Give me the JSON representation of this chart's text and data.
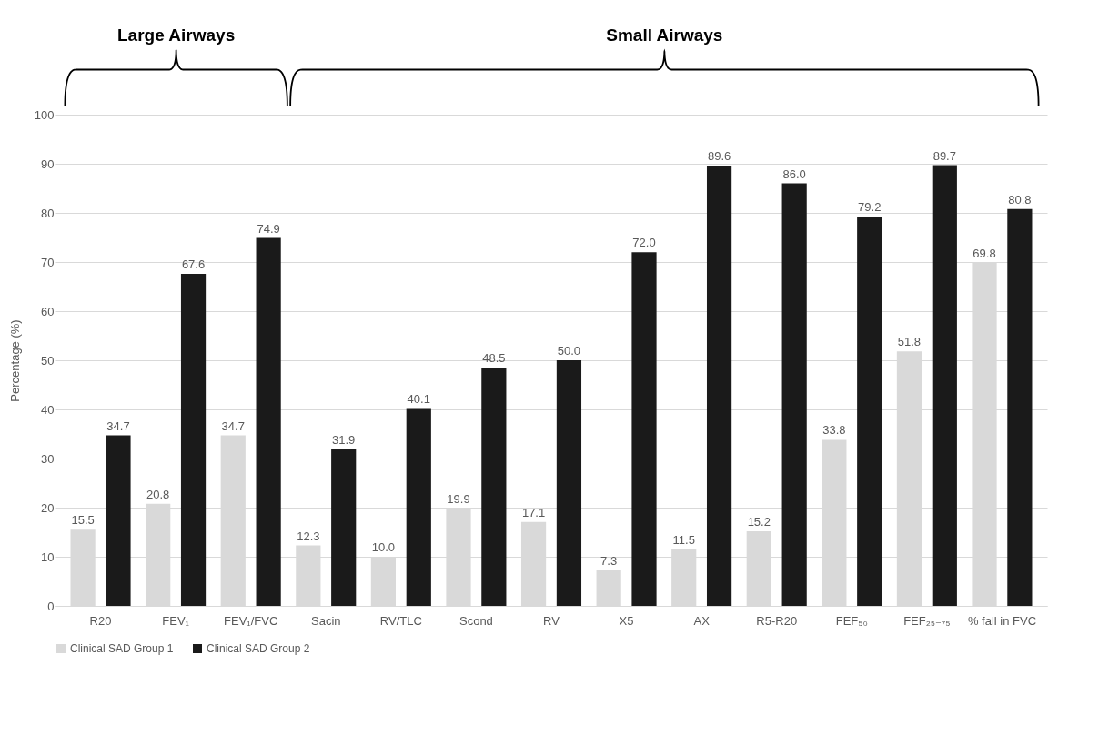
{
  "chart_data": {
    "type": "bar",
    "ylabel": "Percentage (%)",
    "categories": [
      "R20",
      "FEV₁",
      "FEV₁/FVC",
      "Sacin",
      "RV/TLC",
      "Scond",
      "RV",
      "X5",
      "AX",
      "R5-R20",
      "FEF₅₀",
      "FEF₂₅₋₇₅",
      "% fall in FVC"
    ],
    "series": [
      {
        "name": "Clinical SAD Group 1",
        "color": "#d9d9d9",
        "values": [
          15.5,
          20.8,
          34.7,
          12.3,
          10.0,
          19.9,
          17.1,
          7.3,
          11.5,
          15.2,
          33.8,
          51.8,
          69.8
        ],
        "value_labels": [
          "15.5",
          "20.8",
          "34.7",
          "12.3",
          "10.0",
          "19.9",
          "17.1",
          "7.3",
          "11.5",
          "15.2",
          "33.8",
          "51.8",
          "69.8"
        ]
      },
      {
        "name": "Clinical SAD Group 2",
        "color": "#1a1a1a",
        "values": [
          34.7,
          67.6,
          74.9,
          31.9,
          40.1,
          48.5,
          50.0,
          72.0,
          89.6,
          86.0,
          79.2,
          89.7,
          80.8
        ],
        "value_labels": [
          "34.7",
          "67.6",
          "74.9",
          "31.9",
          "40.1",
          "48.5",
          "50.0",
          "72.0",
          "89.6",
          "86.0",
          "79.2",
          "89.7",
          "80.8"
        ]
      }
    ],
    "ylim": [
      0,
      100
    ],
    "yticks": [
      0,
      10,
      20,
      30,
      40,
      50,
      60,
      70,
      80,
      90,
      100
    ],
    "grid": "y",
    "legend": "bottom",
    "annotations": [
      "Large Airways",
      "Small Airways"
    ]
  }
}
